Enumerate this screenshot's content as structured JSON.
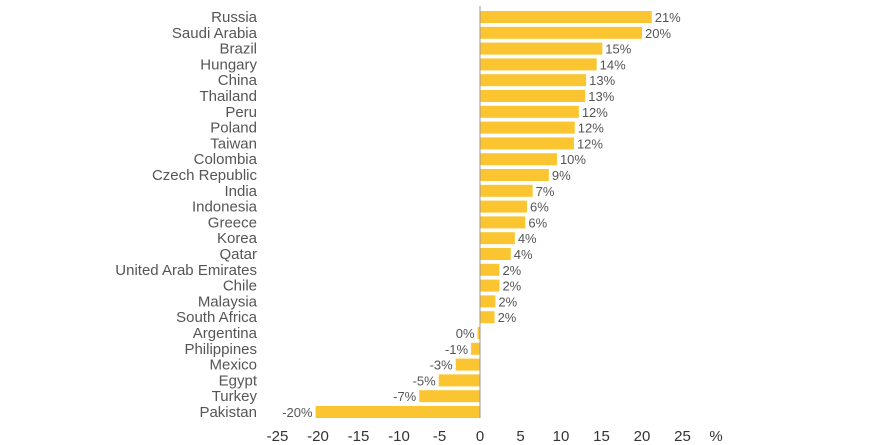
{
  "chart_data": {
    "type": "bar",
    "orientation": "horizontal",
    "categories": [
      "Russia",
      "Saudi Arabia",
      "Brazil",
      "Hungary",
      "China",
      "Thailand",
      "Peru",
      "Poland",
      "Taiwan",
      "Colombia",
      "Czech Republic",
      "India",
      "Indonesia",
      "Greece",
      "Korea",
      "Qatar",
      "United Arab Emirates",
      "Chile",
      "Malaysia",
      "South Africa",
      "Argentina",
      "Philippines",
      "Mexico",
      "Egypt",
      "Turkey",
      "Pakistan"
    ],
    "values": [
      21.2,
      20.0,
      15.1,
      14.4,
      13.1,
      13.0,
      12.2,
      11.7,
      11.6,
      9.5,
      8.5,
      6.5,
      5.8,
      5.6,
      4.3,
      3.8,
      2.4,
      2.4,
      1.9,
      1.8,
      -0.3,
      -1.1,
      -3.0,
      -5.1,
      -7.5,
      -20.3
    ],
    "value_labels": [
      "21%",
      "20%",
      "15%",
      "14%",
      "13%",
      "13%",
      "12%",
      "12%",
      "12%",
      "10%",
      "9%",
      "7%",
      "6%",
      "6%",
      "4%",
      "4%",
      "2%",
      "2%",
      "2%",
      "2%",
      "0%",
      "-1%",
      "-3%",
      "-5%",
      "-7%",
      "-20%"
    ],
    "xlim": [
      -25,
      25
    ],
    "x_ticks": [
      "-25",
      "-20",
      "-15",
      "-10",
      "-5",
      "0",
      "5",
      "10",
      "15",
      "20",
      "25"
    ],
    "x_unit": "%",
    "title": "",
    "xlabel": "",
    "ylabel": "",
    "grid": false,
    "legend": "none",
    "bar_color": "#FBC531",
    "axis_color": "#999999"
  }
}
